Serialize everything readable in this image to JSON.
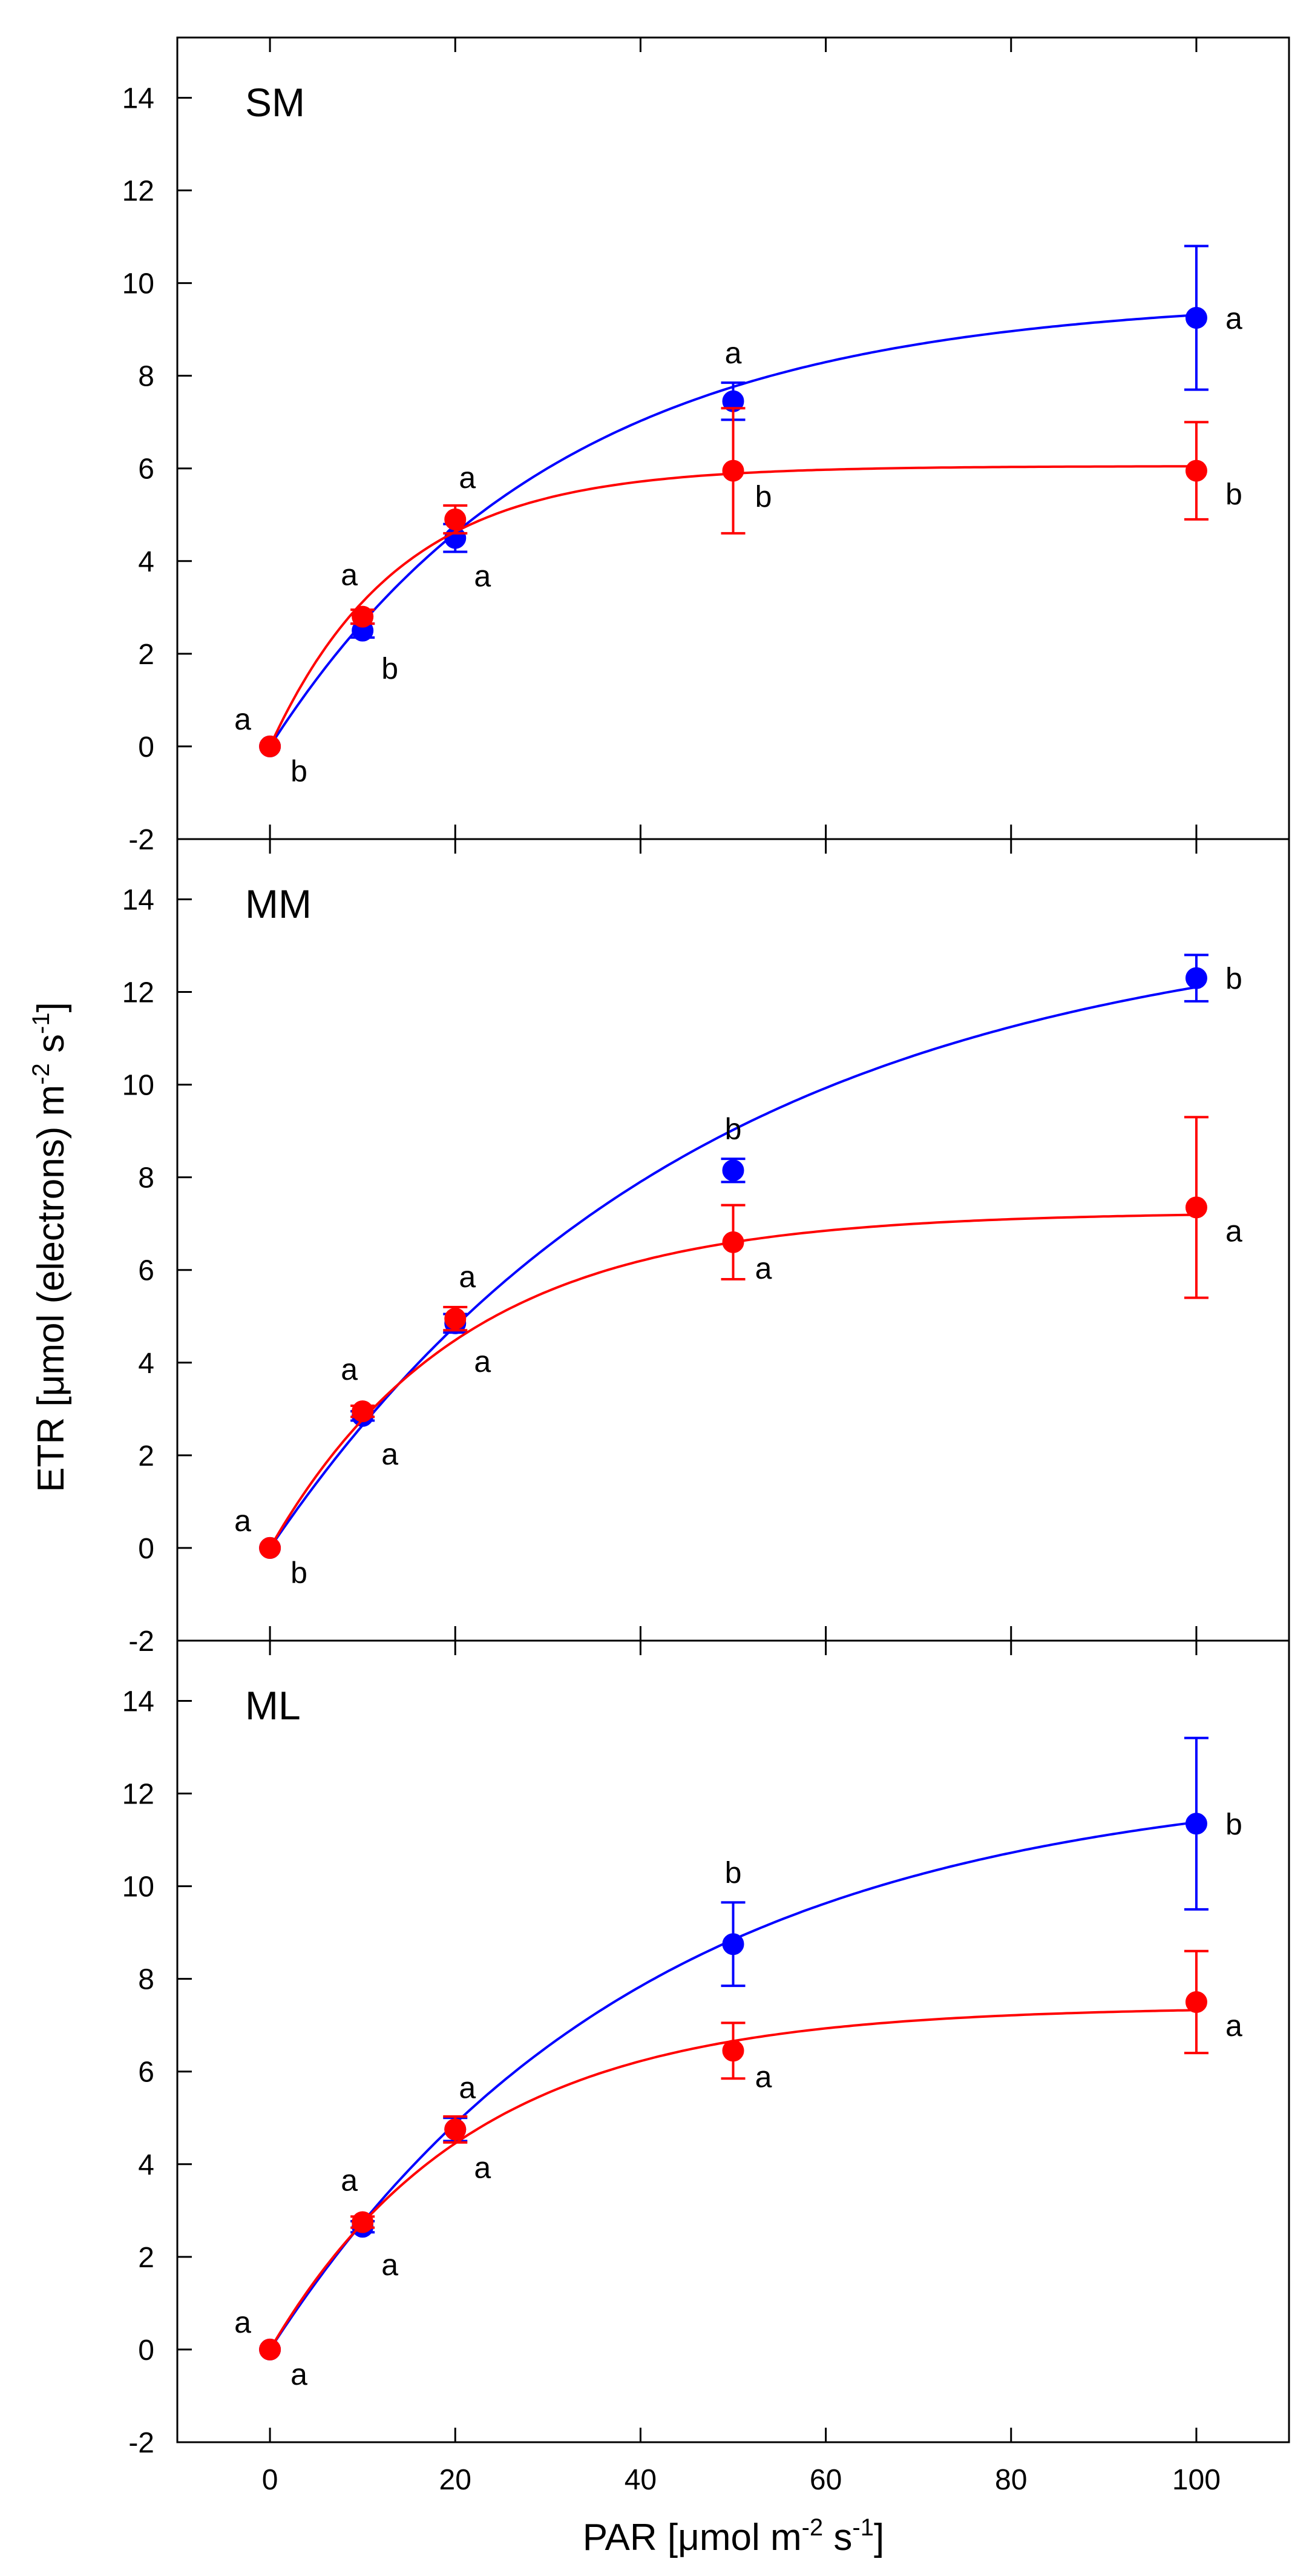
{
  "chart_data": {
    "type": "scatter",
    "x_axis": {
      "label_main": "PAR [",
      "label_mu": "μ",
      "label_unit1": "mol m",
      "label_sup1": "-2",
      "label_unit2": " s",
      "label_sup2": "-1",
      "label_end": "]",
      "ticks": [
        "0",
        "20",
        "40",
        "60",
        "80",
        "100"
      ],
      "tick_values": [
        0,
        20,
        40,
        60,
        80,
        100
      ],
      "xlim": [
        -10,
        110
      ]
    },
    "y_axis": {
      "label_main": "ETR [",
      "label_mu": "μ",
      "label_unit1": "mol (electrons) m",
      "label_sup1": "-2",
      "label_unit2": " s",
      "label_sup2": "-1",
      "label_end": "]",
      "ticks": [
        "-2",
        "0",
        "2",
        "4",
        "6",
        "8",
        "10",
        "12",
        "14"
      ],
      "tick_values": [
        -2,
        0,
        2,
        4,
        6,
        8,
        10,
        12,
        14
      ],
      "ylim": [
        -2,
        15.3
      ]
    },
    "colors": {
      "blue": "#0000ff",
      "red": "#ff0000"
    },
    "panels": [
      {
        "name": "SM",
        "series": [
          {
            "color": "blue",
            "x": [
              0,
              10,
              20,
              50,
              100
            ],
            "y": [
              0,
              2.5,
              4.5,
              7.45,
              9.25
            ],
            "err": [
              0,
              0.15,
              0.3,
              0.4,
              1.55
            ],
            "labels": [
              "b",
              "b",
              "a",
              "a",
              "a"
            ],
            "fit": {
              "pmax": 9.7,
              "k": 0.0322
            }
          },
          {
            "color": "red",
            "x": [
              0,
              10,
              20,
              50,
              100
            ],
            "y": [
              0,
              2.8,
              4.9,
              5.95,
              5.95
            ],
            "err": [
              0,
              0.15,
              0.3,
              1.35,
              1.05
            ],
            "labels": [
              "a",
              "a",
              "a",
              "b",
              "b"
            ],
            "fit": {
              "pmax": 6.05,
              "k": 0.0725
            }
          }
        ]
      },
      {
        "name": "MM",
        "series": [
          {
            "color": "blue",
            "x": [
              0,
              10,
              20,
              50,
              100
            ],
            "y": [
              0,
              2.85,
              4.85,
              8.15,
              12.3
            ],
            "err": [
              0,
              0.1,
              0.2,
              0.25,
              0.5
            ],
            "labels": [
              "b",
              "a",
              "a",
              "b",
              "b"
            ],
            "fit": {
              "pmax": 13.7,
              "k": 0.0215
            }
          },
          {
            "color": "red",
            "x": [
              0,
              10,
              20,
              50,
              100
            ],
            "y": [
              0,
              2.95,
              4.95,
              6.6,
              7.35
            ],
            "err": [
              0,
              0.12,
              0.25,
              0.8,
              1.95
            ],
            "labels": [
              "a",
              "a",
              "a",
              "a",
              "a"
            ],
            "fit": {
              "pmax": 7.25,
              "k": 0.0482
            }
          }
        ]
      },
      {
        "name": "ML",
        "series": [
          {
            "color": "blue",
            "x": [
              0,
              10,
              20,
              50,
              100
            ],
            "y": [
              0,
              2.65,
              4.75,
              8.75,
              11.35
            ],
            "err": [
              0,
              0.12,
              0.25,
              0.9,
              1.85
            ],
            "labels": [
              "a",
              "a",
              "a",
              "b",
              "b"
            ],
            "fit": {
              "pmax": 12.4,
              "k": 0.025
            }
          },
          {
            "color": "red",
            "x": [
              0,
              10,
              20,
              50,
              100
            ],
            "y": [
              0,
              2.75,
              4.75,
              6.45,
              7.5
            ],
            "err": [
              0,
              0.12,
              0.28,
              0.6,
              1.1
            ],
            "labels": [
              "a",
              "a",
              "a",
              "a",
              "a"
            ],
            "fit": {
              "pmax": 7.4,
              "k": 0.046
            }
          }
        ]
      }
    ]
  }
}
